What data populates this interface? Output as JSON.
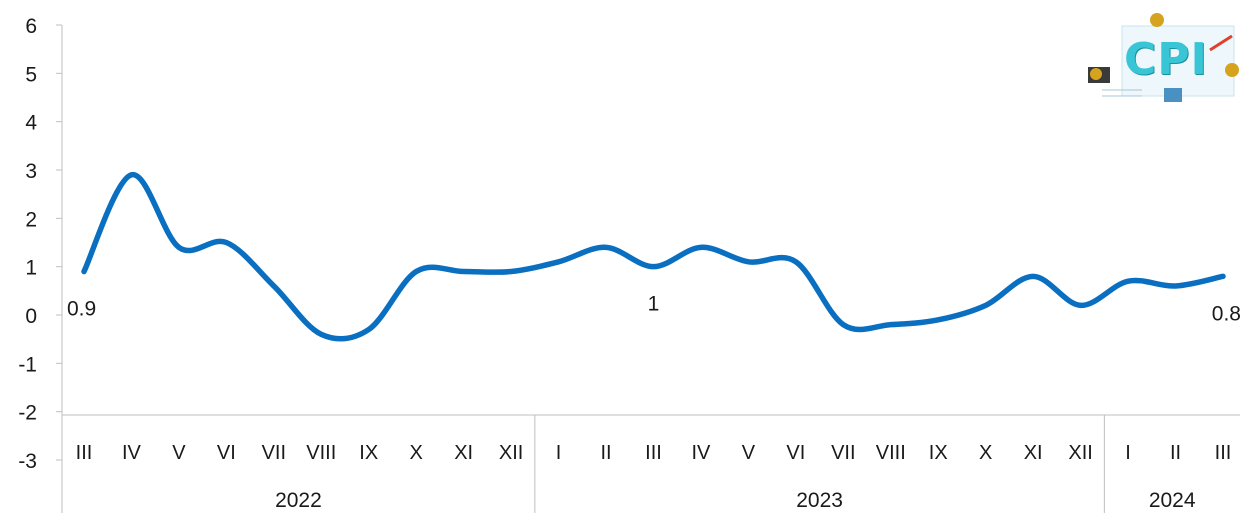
{
  "chart_data": {
    "type": "line",
    "y_axis": {
      "ylim": [
        -3,
        6
      ],
      "ticks": [
        6,
        5,
        4,
        3,
        2,
        1,
        0,
        -1,
        -2,
        -3
      ]
    },
    "months": [
      "III",
      "IV",
      "V",
      "VI",
      "VII",
      "VIII",
      "IX",
      "X",
      "XI",
      "XII",
      "I",
      "II",
      "III",
      "IV",
      "V",
      "VI",
      "VII",
      "VIII",
      "IX",
      "X",
      "XI",
      "XII",
      "I",
      "II",
      "III"
    ],
    "years": [
      {
        "label": "2022",
        "count": 10
      },
      {
        "label": "2023",
        "count": 12
      },
      {
        "label": "2024",
        "count": 3
      }
    ],
    "series": [
      {
        "values": [
          0.9,
          2.9,
          1.4,
          1.5,
          0.6,
          -0.4,
          -0.3,
          0.9,
          0.9,
          0.9,
          1.1,
          1.4,
          1.0,
          1.4,
          1.1,
          1.1,
          -0.2,
          -0.2,
          -0.1,
          0.2,
          0.8,
          0.2,
          0.7,
          0.6,
          0.8
        ],
        "color": "#0a6fc0"
      }
    ],
    "data_labels": [
      {
        "index": 0,
        "text": "0.9"
      },
      {
        "index": 12,
        "text": "1"
      },
      {
        "index": 24,
        "text": "0.8"
      }
    ],
    "legend": "none",
    "grid": false
  },
  "logo": {
    "text": "CPI",
    "icon": "cpi-infographic-logo"
  }
}
